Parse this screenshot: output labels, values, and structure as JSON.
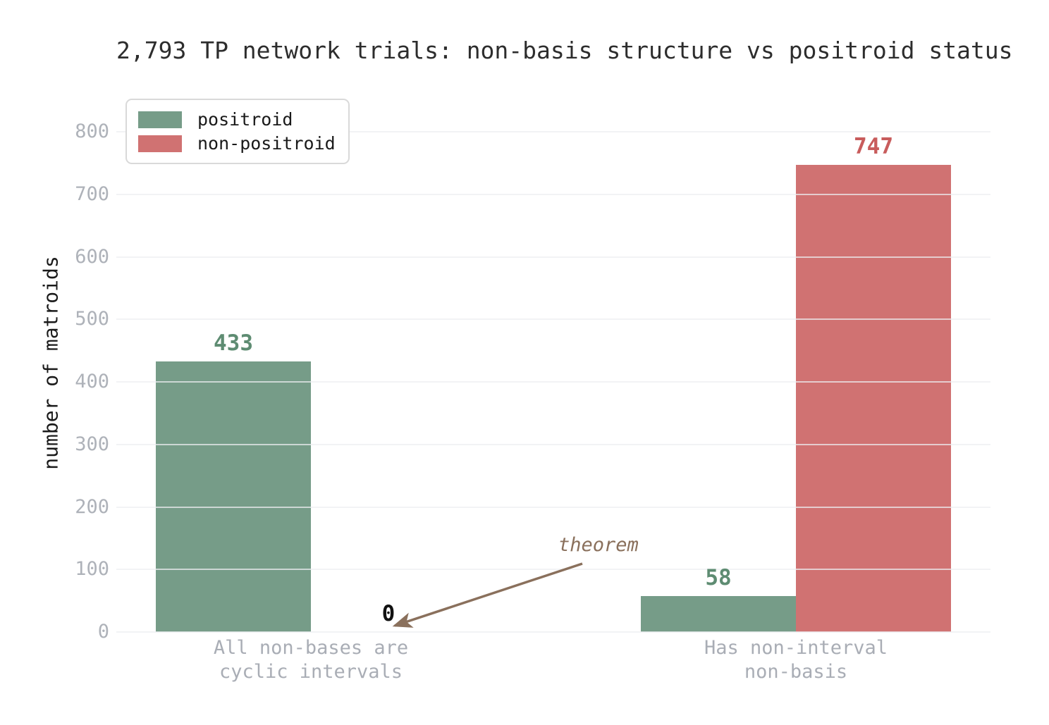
{
  "chart_data": {
    "type": "bar",
    "title": "2,793 TP network trials: non-basis structure vs positroid status",
    "ylabel": "number of matroids",
    "categories": [
      "All non-bases are\ncyclic intervals",
      "Has non-interval\nnon-basis"
    ],
    "series": [
      {
        "name": "positroid",
        "color": "#769c88",
        "label_color": "#5e8c72",
        "values": [
          433,
          58
        ]
      },
      {
        "name": "non-positroid",
        "color": "#d07272",
        "label_color": "#c85c5c",
        "values": [
          0,
          747
        ]
      }
    ],
    "ylim": [
      0,
      800
    ],
    "yticks": [
      0,
      100,
      200,
      300,
      400,
      500,
      600,
      700,
      800
    ],
    "grid": true,
    "legend_position": "upper left",
    "zero_value_label_color": "#111111",
    "annotation": {
      "text": "theorem",
      "color": "#8a705c"
    }
  }
}
